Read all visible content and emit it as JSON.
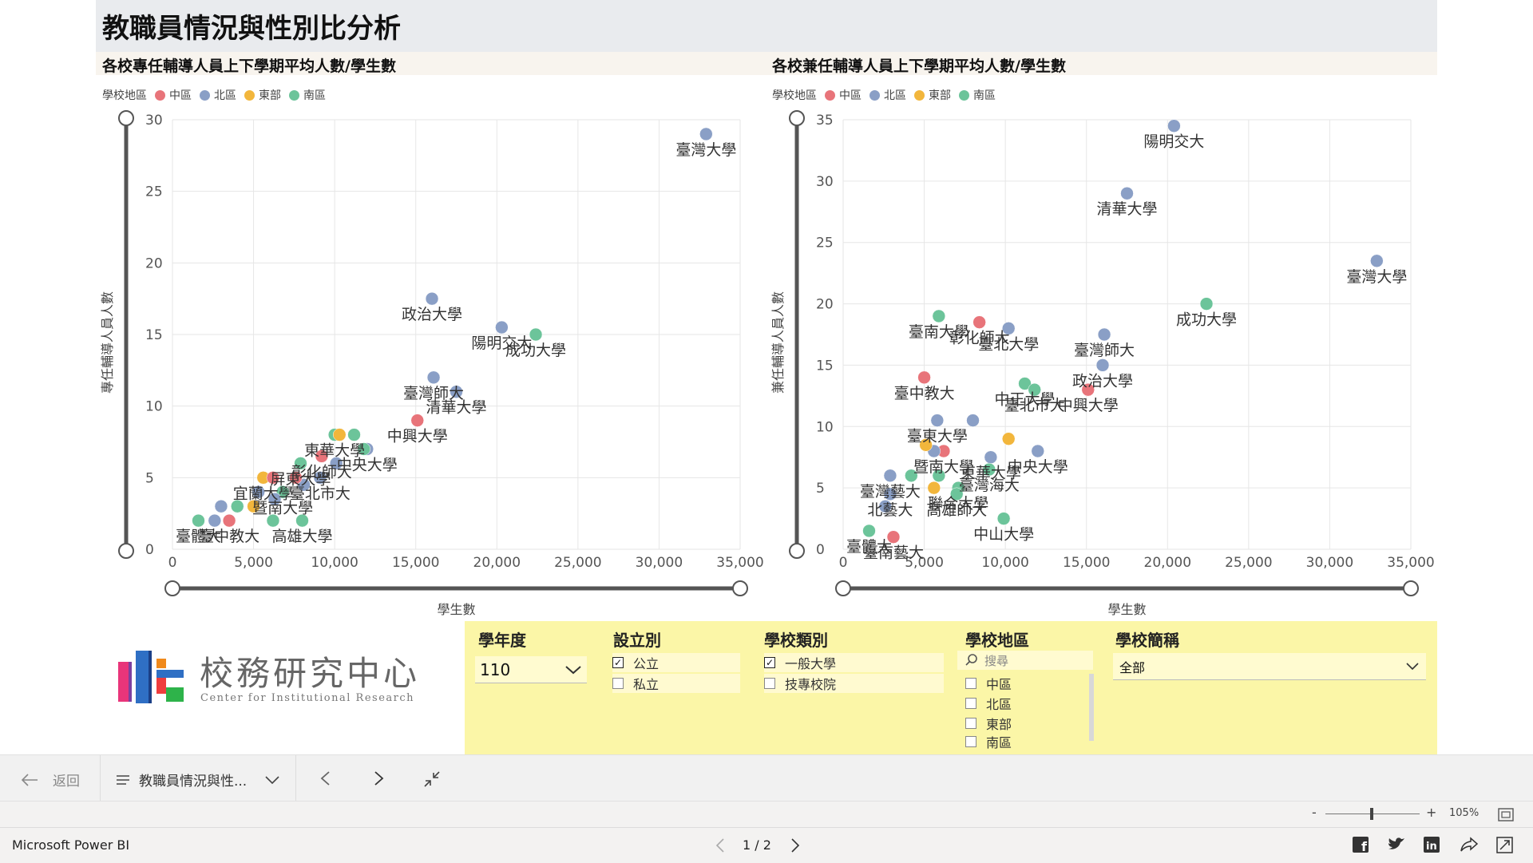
{
  "header": {
    "title": "教職員情況與性別比分析"
  },
  "legend": {
    "title": "學校地區",
    "items": [
      {
        "label": "中區",
        "color": "#e8747a"
      },
      {
        "label": "北區",
        "color": "#8a9fc6"
      },
      {
        "label": "東部",
        "color": "#f2b63c"
      },
      {
        "label": "南區",
        "color": "#6cc49a"
      }
    ]
  },
  "charts": [
    {
      "title": "各校專任輔導人員上下學期平均人數/學生數",
      "xlabel": "學生數",
      "ylabel": "專任輔導人員人數",
      "x_ticks": [
        "0",
        "5,000",
        "10,000",
        "15,000",
        "20,000",
        "25,000",
        "30,000",
        "35,000"
      ],
      "y_ticks": [
        "0",
        "5",
        "10",
        "15",
        "20",
        "25",
        "30"
      ]
    },
    {
      "title": "各校兼任輔導人員上下學期平均人數/學生數",
      "xlabel": "學生數",
      "ylabel": "兼任輔導人員人數",
      "x_ticks": [
        "0",
        "5,000",
        "10,000",
        "15,000",
        "20,000",
        "25,000",
        "30,000",
        "35,000"
      ],
      "y_ticks": [
        "0",
        "5",
        "10",
        "15",
        "20",
        "25",
        "30",
        "35"
      ]
    }
  ],
  "chart_data": [
    {
      "type": "scatter",
      "title": "各校專任輔導人員上下學期平均人數/學生數",
      "xlabel": "學生數",
      "ylabel": "專任輔導人員人數",
      "xlim": [
        0,
        35000
      ],
      "ylim": [
        0,
        30
      ],
      "legend": "top-left",
      "grid": true,
      "points": [
        {
          "x": 32900,
          "y": 29,
          "region": "北區",
          "label": "臺灣大學"
        },
        {
          "x": 16000,
          "y": 17.5,
          "region": "北區",
          "label": "政治大學"
        },
        {
          "x": 22400,
          "y": 15,
          "region": "南區",
          "label": "成功大學"
        },
        {
          "x": 20300,
          "y": 15.5,
          "region": "北區",
          "label": "陽明交大"
        },
        {
          "x": 16100,
          "y": 12,
          "region": "北區",
          "label": "臺灣師大"
        },
        {
          "x": 17500,
          "y": 11,
          "region": "北區",
          "label": "清華大學"
        },
        {
          "x": 15100,
          "y": 9,
          "region": "中區",
          "label": "中興大學"
        },
        {
          "x": 12000,
          "y": 7,
          "region": "北區",
          "label": "中央大學"
        },
        {
          "x": 10000,
          "y": 8,
          "region": "南區",
          "label": "東華大學"
        },
        {
          "x": 10300,
          "y": 8,
          "region": "東部",
          "label": ""
        },
        {
          "x": 11200,
          "y": 8,
          "region": "南區",
          "label": ""
        },
        {
          "x": 11800,
          "y": 7,
          "region": "南區",
          "label": ""
        },
        {
          "x": 9200,
          "y": 6.5,
          "region": "中區",
          "label": "彰化師大"
        },
        {
          "x": 7900,
          "y": 6,
          "region": "南區",
          "label": "屏東大學"
        },
        {
          "x": 10100,
          "y": 6,
          "region": "北區",
          "label": ""
        },
        {
          "x": 9100,
          "y": 5,
          "region": "北區",
          "label": "臺北市大"
        },
        {
          "x": 8100,
          "y": 4.5,
          "region": "北區",
          "label": ""
        },
        {
          "x": 7600,
          "y": 5,
          "region": "中區",
          "label": ""
        },
        {
          "x": 5600,
          "y": 5,
          "region": "東部",
          "label": "宜蘭大學"
        },
        {
          "x": 6200,
          "y": 5,
          "region": "中區",
          "label": ""
        },
        {
          "x": 6800,
          "y": 4,
          "region": "南區",
          "label": "暨南大學"
        },
        {
          "x": 5300,
          "y": 4,
          "region": "北區",
          "label": ""
        },
        {
          "x": 6300,
          "y": 3.5,
          "region": "北區",
          "label": ""
        },
        {
          "x": 4000,
          "y": 3,
          "region": "南區",
          "label": ""
        },
        {
          "x": 5000,
          "y": 3,
          "region": "東部",
          "label": ""
        },
        {
          "x": 3000,
          "y": 3,
          "region": "北區",
          "label": ""
        },
        {
          "x": 8000,
          "y": 2,
          "region": "南區",
          "label": "高雄大學"
        },
        {
          "x": 6200,
          "y": 2,
          "region": "南區",
          "label": ""
        },
        {
          "x": 3500,
          "y": 2,
          "region": "中區",
          "label": "臺中教大"
        },
        {
          "x": 2600,
          "y": 2,
          "region": "北區",
          "label": ""
        },
        {
          "x": 1600,
          "y": 2,
          "region": "南區",
          "label": "臺體大"
        }
      ]
    },
    {
      "type": "scatter",
      "title": "各校兼任輔導人員上下學期平均人數/學生數",
      "xlabel": "學生數",
      "ylabel": "兼任輔導人員人數",
      "xlim": [
        0,
        35000
      ],
      "ylim": [
        0,
        35
      ],
      "legend": "top-left",
      "grid": true,
      "points": [
        {
          "x": 20400,
          "y": 34.5,
          "region": "北區",
          "label": "陽明交大"
        },
        {
          "x": 17500,
          "y": 29,
          "region": "北區",
          "label": "清華大學"
        },
        {
          "x": 32900,
          "y": 23.5,
          "region": "北區",
          "label": "臺灣大學"
        },
        {
          "x": 22400,
          "y": 20,
          "region": "南區",
          "label": "成功大學"
        },
        {
          "x": 5900,
          "y": 19,
          "region": "南區",
          "label": "臺南大學"
        },
        {
          "x": 10200,
          "y": 18,
          "region": "北區",
          "label": "臺北大學"
        },
        {
          "x": 8400,
          "y": 18.5,
          "region": "中區",
          "label": "彰化師大"
        },
        {
          "x": 16100,
          "y": 17.5,
          "region": "北區",
          "label": "臺灣師大"
        },
        {
          "x": 16000,
          "y": 15,
          "region": "北區",
          "label": "政治大學"
        },
        {
          "x": 11200,
          "y": 13.5,
          "region": "南區",
          "label": "中正大學"
        },
        {
          "x": 15100,
          "y": 13,
          "region": "中區",
          "label": "中興大學"
        },
        {
          "x": 11800,
          "y": 13,
          "region": "南區",
          "label": "臺北市大"
        },
        {
          "x": 5000,
          "y": 14,
          "region": "中區",
          "label": "臺中教大"
        },
        {
          "x": 5800,
          "y": 10.5,
          "region": "北區",
          "label": "臺東大學"
        },
        {
          "x": 8000,
          "y": 10.5,
          "region": "北區",
          "label": ""
        },
        {
          "x": 12000,
          "y": 8,
          "region": "北區",
          "label": "中央大學"
        },
        {
          "x": 10200,
          "y": 9,
          "region": "東部",
          "label": ""
        },
        {
          "x": 6200,
          "y": 8,
          "region": "中區",
          "label": "暨南大學"
        },
        {
          "x": 5600,
          "y": 8,
          "region": "北區",
          "label": ""
        },
        {
          "x": 5100,
          "y": 8.5,
          "region": "東部",
          "label": ""
        },
        {
          "x": 9100,
          "y": 7.5,
          "region": "北區",
          "label": "東華大學"
        },
        {
          "x": 9000,
          "y": 6.5,
          "region": "南區",
          "label": "臺灣海大"
        },
        {
          "x": 2900,
          "y": 6,
          "region": "北區",
          "label": "臺灣藝大"
        },
        {
          "x": 4200,
          "y": 6,
          "region": "南區",
          "label": ""
        },
        {
          "x": 5900,
          "y": 6,
          "region": "南區",
          "label": ""
        },
        {
          "x": 7100,
          "y": 5,
          "region": "南區",
          "label": "聯合大學"
        },
        {
          "x": 5600,
          "y": 5,
          "region": "東部",
          "label": ""
        },
        {
          "x": 7000,
          "y": 4.5,
          "region": "南區",
          "label": "高雄師大"
        },
        {
          "x": 2900,
          "y": 4.5,
          "region": "北區",
          "label": "北藝大"
        },
        {
          "x": 2600,
          "y": 3.5,
          "region": "北區",
          "label": ""
        },
        {
          "x": 9900,
          "y": 2.5,
          "region": "南區",
          "label": "中山大學"
        },
        {
          "x": 1600,
          "y": 1.5,
          "region": "南區",
          "label": "臺體大"
        },
        {
          "x": 3100,
          "y": 1,
          "region": "中區",
          "label": "臺南藝大"
        }
      ]
    }
  ],
  "logo": {
    "cn": "校務研究中心",
    "en": "Center for Institutional Research"
  },
  "filters": {
    "year": {
      "title": "學年度",
      "value": "110"
    },
    "type": {
      "title": "設立別",
      "options": [
        {
          "label": "公立",
          "checked": true
        },
        {
          "label": "私立",
          "checked": false
        }
      ]
    },
    "category": {
      "title": "學校類別",
      "options": [
        {
          "label": "一般大學",
          "checked": true
        },
        {
          "label": "技專校院",
          "checked": false
        }
      ]
    },
    "region": {
      "title": "學校地區",
      "search_placeholder": "搜尋",
      "options": [
        {
          "label": "中區"
        },
        {
          "label": "北區"
        },
        {
          "label": "東部"
        },
        {
          "label": "南區"
        }
      ]
    },
    "school": {
      "title": "學校簡稱",
      "value": "全部"
    }
  },
  "nav": {
    "back_label": "返回",
    "page_name": "教職員情況與性...",
    "page_indicator": "1 / 2",
    "zoom": "105%",
    "brand": "Microsoft Power BI"
  }
}
